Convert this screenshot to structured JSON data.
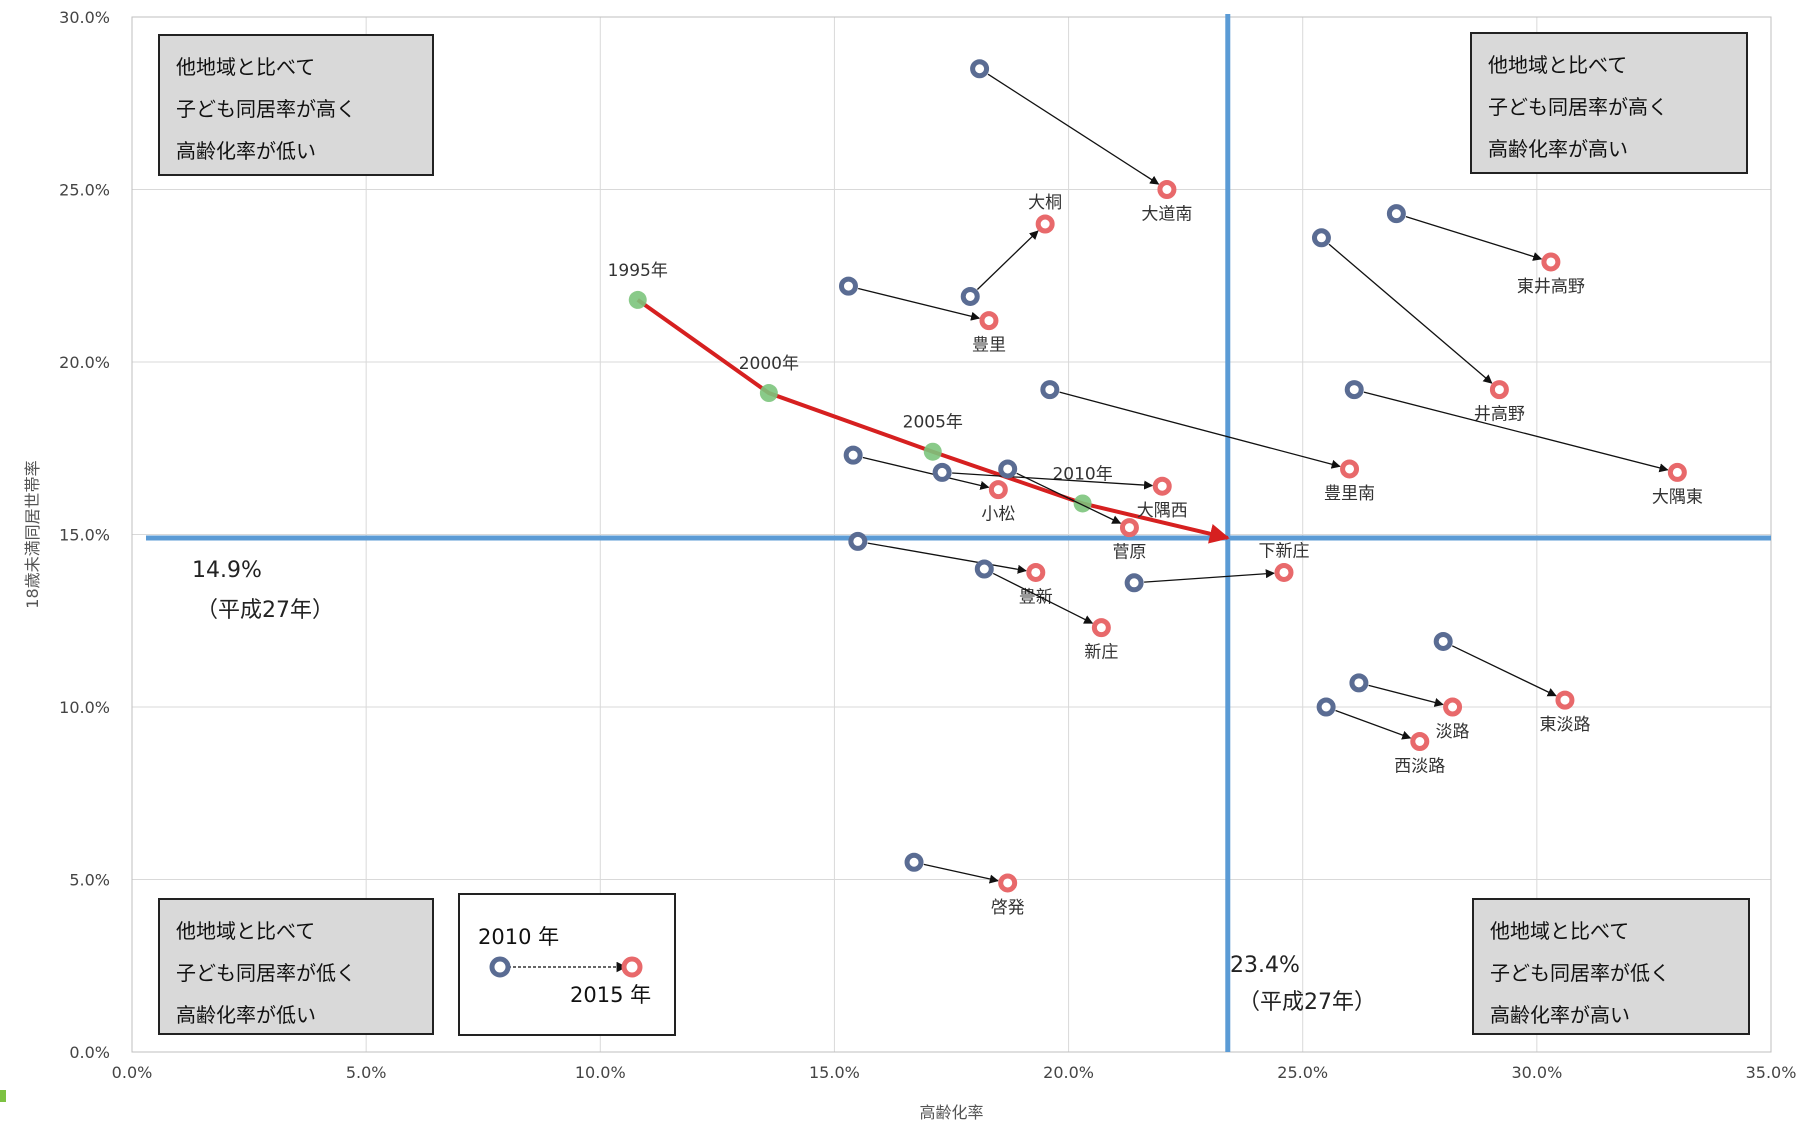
{
  "chart_data": {
    "type": "scatter",
    "xlabel": "高齢化率",
    "ylabel": "18歳未満同居世帯率",
    "xlim": [
      0,
      35
    ],
    "ylim": [
      0,
      30
    ],
    "x_ticks": [
      "0.0%",
      "5.0%",
      "10.0%",
      "15.0%",
      "20.0%",
      "25.0%",
      "30.0%",
      "35.0%"
    ],
    "y_ticks": [
      "0.0%",
      "5.0%",
      "10.0%",
      "15.0%",
      "20.0%",
      "25.0%",
      "30.0%"
    ],
    "grid": true,
    "colors": {
      "y2010": "#5a6c93",
      "y2015": "#e8696b",
      "trend": "#7cc47c",
      "trend_arrow": "#d62020",
      "reference": "#5b9bd5"
    },
    "reference_lines": {
      "horizontal": {
        "y": 14.9,
        "label": "14.9%",
        "sublabel": "（平成27年）"
      },
      "vertical": {
        "x": 23.4,
        "label": "23.4%",
        "sublabel": "（平成27年）"
      }
    },
    "regions": [
      {
        "name": "大道南",
        "x2010": 18.1,
        "y2010": 28.5,
        "x2015": 22.1,
        "y2015": 25.0
      },
      {
        "name": "大桐",
        "x2010": 17.9,
        "y2010": 21.9,
        "x2015": 19.5,
        "y2015": 24.0
      },
      {
        "name": "豊里",
        "x2010": 15.3,
        "y2010": 22.2,
        "x2015": 18.3,
        "y2015": 21.2
      },
      {
        "name": "東井高野",
        "x2010": 27.0,
        "y2010": 24.3,
        "x2015": 30.3,
        "y2015": 22.9
      },
      {
        "name": "井高野",
        "x2010": 25.4,
        "y2010": 23.6,
        "x2015": 29.2,
        "y2015": 19.2
      },
      {
        "name": "豊里南",
        "x2010": 19.6,
        "y2010": 19.2,
        "x2015": 26.0,
        "y2015": 16.9
      },
      {
        "name": "大隅東",
        "x2010": 26.1,
        "y2010": 19.2,
        "x2015": 33.0,
        "y2015": 16.8
      },
      {
        "name": "小松",
        "x2010": 15.4,
        "y2010": 17.3,
        "x2015": 18.5,
        "y2015": 16.3
      },
      {
        "name": "大隅西",
        "x2010": 17.3,
        "y2010": 16.8,
        "x2015": 22.0,
        "y2015": 16.4
      },
      {
        "name": "豊新",
        "x2010": 15.5,
        "y2010": 14.8,
        "x2015": 19.3,
        "y2015": 13.9
      },
      {
        "name": "新庄",
        "x2010": 18.2,
        "y2010": 14.0,
        "x2015": 20.7,
        "y2015": 12.3
      },
      {
        "name": "菅原",
        "x2010": 18.7,
        "y2010": 16.9,
        "x2015": 21.3,
        "y2015": 15.2
      },
      {
        "name": "下新庄",
        "x2010": 21.4,
        "y2010": 13.6,
        "x2015": 24.6,
        "y2015": 13.9
      },
      {
        "name": "東淡路",
        "x2010": 28.0,
        "y2010": 11.9,
        "x2015": 30.6,
        "y2015": 10.2
      },
      {
        "name": "淡路",
        "x2010": 26.2,
        "y2010": 10.7,
        "x2015": 28.2,
        "y2015": 10.0
      },
      {
        "name": "西淡路",
        "x2010": 25.5,
        "y2010": 10.0,
        "x2015": 27.5,
        "y2015": 9.0
      },
      {
        "name": "啓発",
        "x2010": 16.7,
        "y2010": 5.5,
        "x2015": 18.7,
        "y2015": 4.9
      }
    ],
    "trend_series": [
      {
        "label": "1995年",
        "x": 10.8,
        "y": 21.8
      },
      {
        "label": "2000年",
        "x": 13.6,
        "y": 19.1
      },
      {
        "label": "2005年",
        "x": 17.1,
        "y": 17.4
      },
      {
        "label": "2010年",
        "x": 20.3,
        "y": 15.9
      },
      {
        "label": "",
        "x": 23.4,
        "y": 14.9
      }
    ]
  },
  "quadrants": {
    "top_left": [
      "他地域と比べて",
      "子ども同居率が高く",
      "高齢化率が低い"
    ],
    "top_right": [
      "他地域と比べて",
      "子ども同居率が高く",
      "高齢化率が高い"
    ],
    "bottom_left": [
      "他地域と比べて",
      "子ども同居率が低く",
      "高齢化率が低い"
    ],
    "bottom_right": [
      "他地域と比べて",
      "子ども同居率が低く",
      "高齢化率が高い"
    ]
  },
  "legend": {
    "from_label": "2010 年",
    "to_label": "2015 年"
  }
}
